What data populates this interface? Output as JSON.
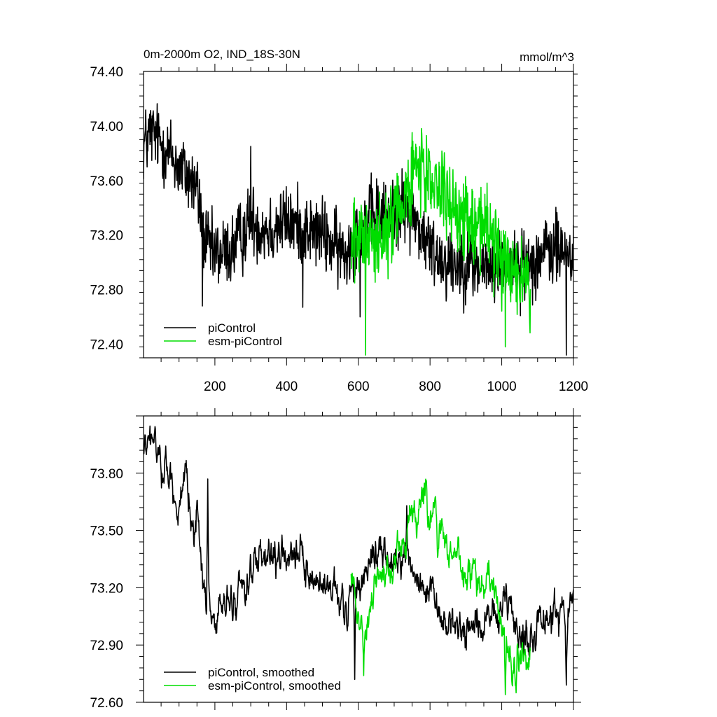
{
  "chart_data": [
    {
      "type": "line",
      "title": "0m-2000m O2, IND_18S-30N",
      "units": "mmol/m^3",
      "xlim": [
        1,
        1200
      ],
      "ylim": [
        72.3,
        74.4
      ],
      "x_ticks": [
        200,
        400,
        600,
        800,
        1000,
        1200
      ],
      "x_tick_labels": [
        "200",
        "400",
        "600",
        "800",
        "1000",
        "1200"
      ],
      "y_ticks": [
        72.4,
        72.8,
        73.2,
        73.6,
        74.0,
        74.4
      ],
      "y_tick_labels": [
        "72.40",
        "72.80",
        "73.20",
        "73.60",
        "74.00",
        "74.40"
      ],
      "legend": [
        "piControl",
        "esm-piControl"
      ],
      "legend_position": "bottom-left",
      "series": [
        {
          "name": "piControl",
          "color": "#000000",
          "x_start": 1,
          "x_end": 1200,
          "smoothed": false,
          "noise_amp": 0.17,
          "anchors": [
            [
              1,
              73.85
            ],
            [
              20,
              73.95
            ],
            [
              60,
              73.85
            ],
            [
              100,
              73.7
            ],
            [
              150,
              73.55
            ],
            [
              170,
              73.15
            ],
            [
              200,
              73.05
            ],
            [
              250,
              73.1
            ],
            [
              300,
              73.3
            ],
            [
              350,
              73.25
            ],
            [
              400,
              73.3
            ],
            [
              450,
              73.25
            ],
            [
              500,
              73.2
            ],
            [
              560,
              73.05
            ],
            [
              600,
              73.25
            ],
            [
              650,
              73.35
            ],
            [
              700,
              73.35
            ],
            [
              740,
              73.4
            ],
            [
              800,
              73.1
            ],
            [
              850,
              73.0
            ],
            [
              900,
              73.0
            ],
            [
              950,
              72.95
            ],
            [
              1000,
              73.0
            ],
            [
              1050,
              72.95
            ],
            [
              1100,
              73.05
            ],
            [
              1150,
              73.1
            ],
            [
              1200,
              73.05
            ]
          ],
          "spikes": [
            [
              165,
              72.68
            ],
            [
              300,
              73.85
            ],
            [
              445,
              72.67
            ],
            [
              605,
              72.6
            ],
            [
              1180,
              72.32
            ]
          ]
        },
        {
          "name": "esm-piControl",
          "color": "#00dd00",
          "x_start": 580,
          "x_end": 1080,
          "smoothed": false,
          "noise_amp": 0.2,
          "anchors": [
            [
              580,
              73.15
            ],
            [
              640,
              73.15
            ],
            [
              700,
              73.3
            ],
            [
              750,
              73.6
            ],
            [
              800,
              73.65
            ],
            [
              850,
              73.45
            ],
            [
              900,
              73.3
            ],
            [
              950,
              73.3
            ],
            [
              1000,
              73.0
            ],
            [
              1050,
              72.85
            ],
            [
              1080,
              72.9
            ]
          ],
          "spikes": [
            [
              620,
              72.32
            ],
            [
              790,
              73.93
            ],
            [
              1010,
              72.38
            ]
          ]
        }
      ]
    },
    {
      "type": "line",
      "title": "",
      "units": "",
      "xlim": [
        1,
        1200
      ],
      "ylim": [
        72.6,
        74.1
      ],
      "x_ticks": [
        200,
        400,
        600,
        800,
        1000,
        1200
      ],
      "x_tick_labels": [],
      "y_ticks": [
        72.6,
        72.9,
        73.2,
        73.5,
        73.8
      ],
      "y_tick_labels": [
        "72.60",
        "72.90",
        "73.20",
        "73.50",
        "73.80"
      ],
      "legend": [
        "piControl, smoothed",
        "esm-piControl, smoothed"
      ],
      "legend_position": "bottom-left",
      "series": [
        {
          "name": "piControl, smoothed",
          "color": "#000000",
          "x_start": 1,
          "x_end": 1200,
          "smoothed": true,
          "noise_amp": 0.08,
          "anchors": [
            [
              1,
              73.9
            ],
            [
              30,
              73.95
            ],
            [
              60,
              73.85
            ],
            [
              100,
              73.65
            ],
            [
              150,
              73.6
            ],
            [
              170,
              73.2
            ],
            [
              200,
              73.05
            ],
            [
              250,
              73.1
            ],
            [
              300,
              73.3
            ],
            [
              350,
              73.3
            ],
            [
              400,
              73.35
            ],
            [
              450,
              73.3
            ],
            [
              500,
              73.2
            ],
            [
              560,
              73.05
            ],
            [
              600,
              73.25
            ],
            [
              650,
              73.4
            ],
            [
              700,
              73.3
            ],
            [
              740,
              73.35
            ],
            [
              800,
              73.1
            ],
            [
              850,
              73.0
            ],
            [
              900,
              73.0
            ],
            [
              950,
              73.0
            ],
            [
              1000,
              73.05
            ],
            [
              1050,
              72.95
            ],
            [
              1100,
              73.0
            ],
            [
              1150,
              73.1
            ],
            [
              1200,
              73.05
            ]
          ],
          "spikes": [
            [
              180,
              73.77
            ],
            [
              590,
              72.72
            ],
            [
              735,
              73.63
            ],
            [
              1180,
              72.69
            ]
          ]
        },
        {
          "name": "esm-piControl, smoothed",
          "color": "#00dd00",
          "x_start": 580,
          "x_end": 1080,
          "smoothed": true,
          "noise_amp": 0.08,
          "anchors": [
            [
              580,
              73.25
            ],
            [
              620,
              73.0
            ],
            [
              660,
              73.3
            ],
            [
              700,
              73.35
            ],
            [
              750,
              73.55
            ],
            [
              790,
              73.65
            ],
            [
              830,
              73.5
            ],
            [
              880,
              73.35
            ],
            [
              930,
              73.25
            ],
            [
              970,
              73.2
            ],
            [
              1000,
              73.0
            ],
            [
              1030,
              72.8
            ],
            [
              1060,
              72.8
            ],
            [
              1080,
              72.9
            ]
          ],
          "spikes": [
            [
              615,
              72.74
            ],
            [
              790,
              73.76
            ],
            [
              1010,
              72.64
            ],
            [
              1040,
              72.65
            ]
          ]
        }
      ]
    }
  ]
}
